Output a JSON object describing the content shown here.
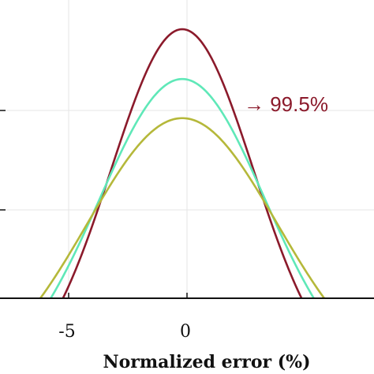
{
  "chart_data": {
    "type": "line",
    "xlabel": "Normalized error (%)",
    "ylabel": "",
    "xlim": [
      -10,
      10
    ],
    "grid": true,
    "x_ticks": [
      {
        "value": -5,
        "label": "-5"
      },
      {
        "value": 0,
        "label": "0"
      }
    ],
    "annotation": {
      "text": "→ 99.5%",
      "x": 2.4,
      "color": "#8b1a2b"
    },
    "series": [
      {
        "color": "#8b1a2b",
        "mean": -0.2,
        "sd": 3.0,
        "peak": 1.0
      },
      {
        "color": "#5fe8b8",
        "mean": -0.2,
        "sd": 3.5,
        "peak": 0.86
      },
      {
        "color": "#b5b83a",
        "mean": -0.2,
        "sd": 4.0,
        "peak": 0.75
      }
    ]
  }
}
